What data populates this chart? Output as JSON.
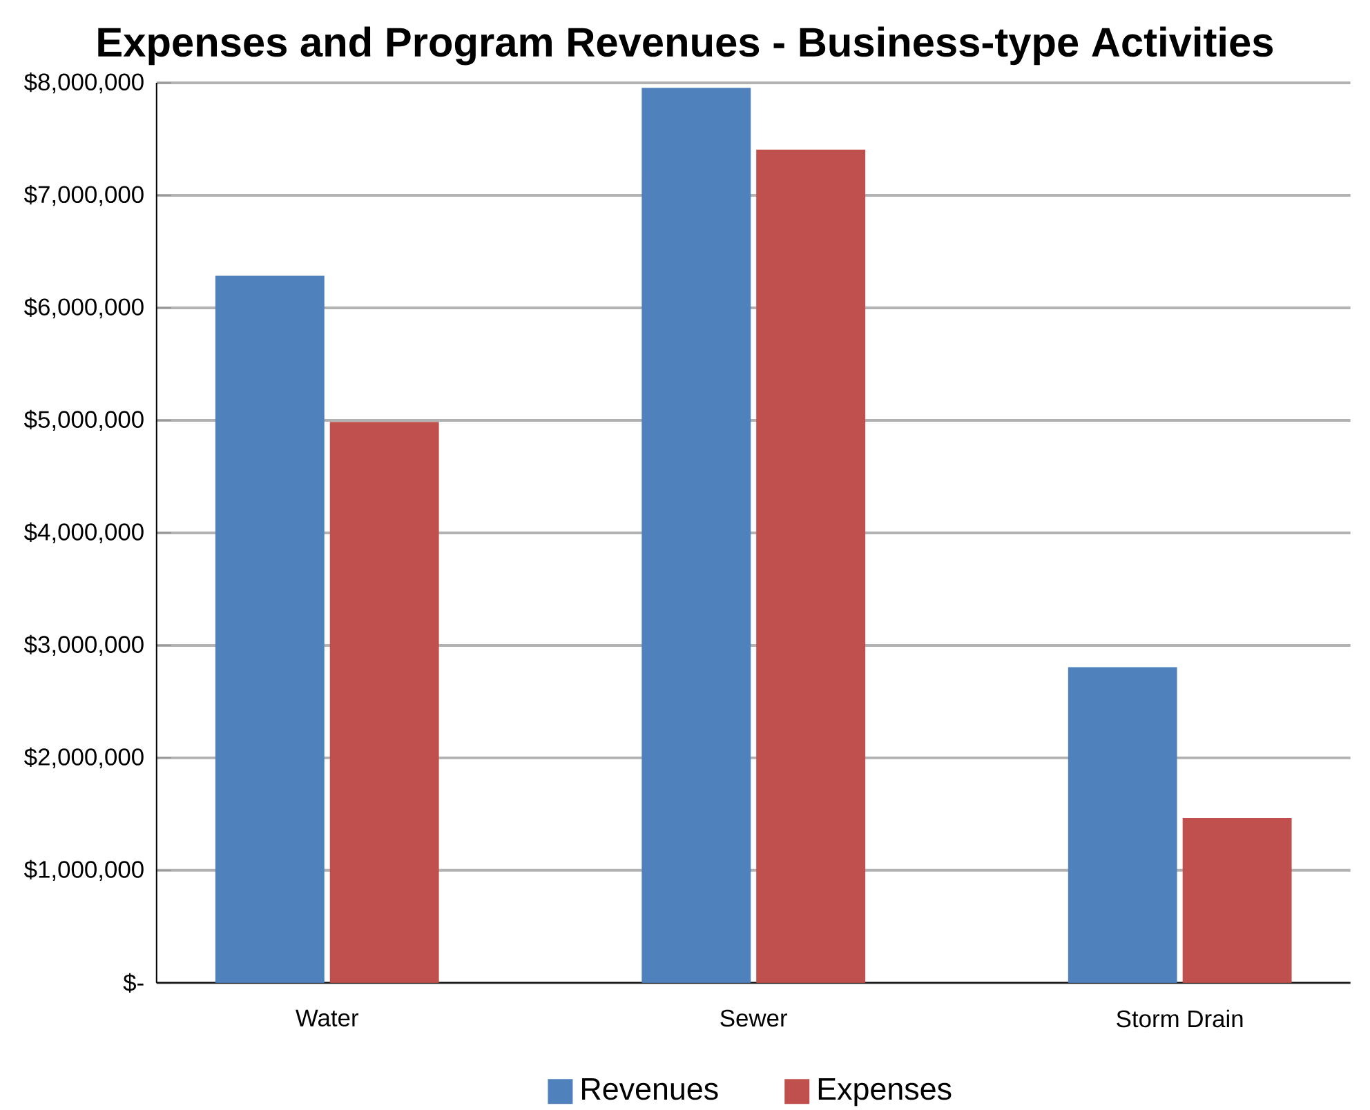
{
  "chart_data": {
    "type": "bar",
    "title": "Expenses and Program Revenues - Business-type Activities",
    "categories": [
      "Water",
      "Sewer",
      "Storm Drain"
    ],
    "series": [
      {
        "name": "Revenues",
        "color": "#4f81bd",
        "values": [
          6280000,
          7950000,
          2800000
        ]
      },
      {
        "name": "Expenses",
        "color": "#c0504d",
        "values": [
          4980000,
          7400000,
          1460000
        ]
      }
    ],
    "ylim": [
      0,
      8000000
    ],
    "yticks": [
      {
        "value": 0,
        "label": "$-"
      },
      {
        "value": 1000000,
        "label": "$1,000,000"
      },
      {
        "value": 2000000,
        "label": "$2,000,000"
      },
      {
        "value": 3000000,
        "label": "$3,000,000"
      },
      {
        "value": 4000000,
        "label": "$4,000,000"
      },
      {
        "value": 5000000,
        "label": "$5,000,000"
      },
      {
        "value": 6000000,
        "label": "$6,000,000"
      },
      {
        "value": 7000000,
        "label": "$7,000,000"
      },
      {
        "value": 8000000,
        "label": "$8,000,000"
      }
    ],
    "grid": "y",
    "legend": "bottom"
  }
}
